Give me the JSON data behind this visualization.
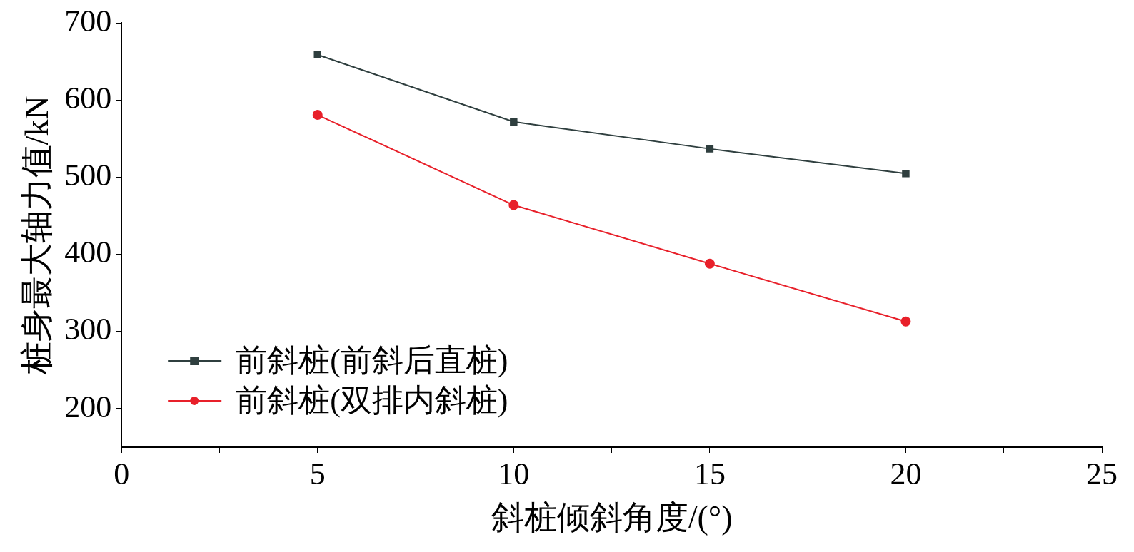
{
  "chart_data": {
    "type": "line",
    "xlabel": "斜桩倾斜角度/(°)",
    "ylabel": "桩身最大轴力值/kN",
    "xlim": [
      0,
      25
    ],
    "xticks": [
      0,
      {
        "value": 2.5,
        "label": null
      },
      5,
      {
        "value": 7.5,
        "label": null
      },
      10,
      {
        "value": 12.5,
        "label": null
      },
      15,
      {
        "value": 17.5,
        "label": null
      },
      20,
      {
        "value": 22.5,
        "label": null
      },
      25
    ],
    "ylim": [
      150,
      700
    ],
    "yticks": [
      200,
      300,
      400,
      500,
      600,
      700
    ],
    "x": [
      5,
      10,
      15,
      20
    ],
    "series": [
      {
        "name": "前斜桩(前斜后直桩)",
        "color": "#2f3f3f",
        "marker": "square",
        "values": [
          659,
          572,
          537,
          505
        ]
      },
      {
        "name": "前斜桩(双排内斜桩)",
        "color": "#e8202a",
        "marker": "circle",
        "values": [
          581,
          464,
          388,
          313
        ]
      }
    ],
    "legend": "bottom left",
    "grid": false,
    "line_style": "solid"
  }
}
